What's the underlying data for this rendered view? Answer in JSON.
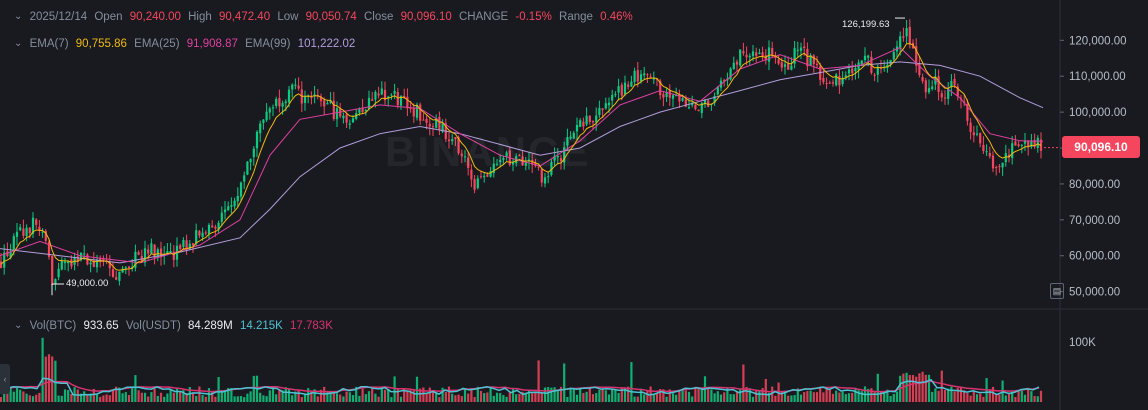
{
  "header": {
    "date": "2025/12/14",
    "open_label": "Open",
    "open": "90,240.00",
    "high_label": "High",
    "high": "90,472.40",
    "low_label": "Low",
    "low": "90,050.74",
    "close_label": "Close",
    "close": "90,096.10",
    "change_label": "CHANGE",
    "change": "-0.15%",
    "range_label": "Range",
    "range": "0.46%"
  },
  "ema": {
    "ema7_label": "EMA(7)",
    "ema7": "90,755.86",
    "ema25_label": "EMA(25)",
    "ema25": "91,908.87",
    "ema99_label": "EMA(99)",
    "ema99": "101,222.02"
  },
  "volume": {
    "label": "Vol(BTC)",
    "btc": "933.65",
    "usdt_label": "Vol(USDT)",
    "usdt": "84.289M",
    "ma1": "14.215K",
    "ma2": "17.783K"
  },
  "watermark": "BINANCE",
  "price_tag": "90,096.10",
  "annotations": {
    "high_marker": "126,199.63",
    "low_marker": "49,000.00"
  },
  "colors": {
    "up": "#0ecb81",
    "down": "#f6465d",
    "ema7": "#f0b90b",
    "ema25": "#e040a0",
    "ema99": "#b39ddb",
    "vol_ma1": "#4fc3d6",
    "vol_ma2": "#d8336f"
  },
  "icons": {
    "collapse": "chevron-down-icon",
    "settings": "chart-settings-icon",
    "scroll": "chevron-left-icon"
  },
  "chart_data": {
    "type": "candlestick",
    "y_ticks": [
      "120,000.00",
      "110,000.00",
      "100,000.00",
      "90,000.00",
      "80,000.00",
      "70,000.00",
      "60,000.00",
      "50,000.00"
    ],
    "ylim": [
      46000,
      129000
    ],
    "volume_ticks": [
      "100K"
    ],
    "volume_ylim": [
      0,
      150000
    ],
    "price_path": [
      [
        0,
        58000
      ],
      [
        20,
        66000
      ],
      [
        35,
        69000
      ],
      [
        48,
        62000
      ],
      [
        52,
        52000
      ],
      [
        60,
        56000
      ],
      [
        80,
        60000
      ],
      [
        100,
        58000
      ],
      [
        120,
        54000
      ],
      [
        135,
        59000
      ],
      [
        150,
        62000
      ],
      [
        170,
        60000
      ],
      [
        190,
        64000
      ],
      [
        210,
        68000
      ],
      [
        230,
        72000
      ],
      [
        245,
        85000
      ],
      [
        255,
        92000
      ],
      [
        265,
        100000
      ],
      [
        280,
        104000
      ],
      [
        295,
        106000
      ],
      [
        310,
        102000
      ],
      [
        320,
        104000
      ],
      [
        335,
        100000
      ],
      [
        350,
        98000
      ],
      [
        365,
        102000
      ],
      [
        380,
        106000
      ],
      [
        395,
        104000
      ],
      [
        410,
        102000
      ],
      [
        425,
        98000
      ],
      [
        440,
        96000
      ],
      [
        455,
        92000
      ],
      [
        465,
        86000
      ],
      [
        475,
        80000
      ],
      [
        490,
        82000
      ],
      [
        505,
        88000
      ],
      [
        520,
        86000
      ],
      [
        535,
        84000
      ],
      [
        545,
        80000
      ],
      [
        555,
        86000
      ],
      [
        565,
        90000
      ],
      [
        575,
        96000
      ],
      [
        590,
        98000
      ],
      [
        605,
        102000
      ],
      [
        620,
        106000
      ],
      [
        635,
        110000
      ],
      [
        650,
        108000
      ],
      [
        665,
        106000
      ],
      [
        680,
        104000
      ],
      [
        695,
        100000
      ],
      [
        710,
        104000
      ],
      [
        725,
        108000
      ],
      [
        740,
        116000
      ],
      [
        755,
        118000
      ],
      [
        770,
        116000
      ],
      [
        785,
        112000
      ],
      [
        800,
        118000
      ],
      [
        815,
        112000
      ],
      [
        830,
        108000
      ],
      [
        845,
        110000
      ],
      [
        860,
        116000
      ],
      [
        875,
        112000
      ],
      [
        890,
        114000
      ],
      [
        905,
        124000
      ],
      [
        915,
        116000
      ],
      [
        925,
        106000
      ],
      [
        935,
        110000
      ],
      [
        945,
        104000
      ],
      [
        955,
        108000
      ],
      [
        965,
        100000
      ],
      [
        975,
        94000
      ],
      [
        985,
        90000
      ],
      [
        995,
        84000
      ],
      [
        1005,
        88000
      ],
      [
        1015,
        90000
      ],
      [
        1025,
        92000
      ],
      [
        1035,
        91000
      ],
      [
        1043,
        90096
      ]
    ],
    "ema99_path": [
      [
        0,
        62000
      ],
      [
        60,
        60000
      ],
      [
        120,
        58000
      ],
      [
        180,
        61000
      ],
      [
        240,
        65000
      ],
      [
        270,
        73000
      ],
      [
        300,
        82000
      ],
      [
        340,
        90000
      ],
      [
        380,
        94000
      ],
      [
        420,
        96000
      ],
      [
        460,
        94000
      ],
      [
        500,
        91000
      ],
      [
        540,
        88000
      ],
      [
        580,
        90000
      ],
      [
        620,
        96000
      ],
      [
        660,
        100000
      ],
      [
        700,
        103000
      ],
      [
        740,
        106000
      ],
      [
        780,
        109000
      ],
      [
        820,
        111000
      ],
      [
        860,
        113000
      ],
      [
        900,
        114000
      ],
      [
        940,
        113000
      ],
      [
        980,
        110000
      ],
      [
        1020,
        104000
      ],
      [
        1043,
        101222
      ]
    ],
    "ema25_path": [
      [
        0,
        60000
      ],
      [
        40,
        64000
      ],
      [
        80,
        60000
      ],
      [
        140,
        58000
      ],
      [
        200,
        63000
      ],
      [
        240,
        70000
      ],
      [
        270,
        88000
      ],
      [
        300,
        98000
      ],
      [
        340,
        100000
      ],
      [
        380,
        102000
      ],
      [
        420,
        101000
      ],
      [
        460,
        94000
      ],
      [
        500,
        88000
      ],
      [
        540,
        85000
      ],
      [
        580,
        92000
      ],
      [
        620,
        102000
      ],
      [
        660,
        106000
      ],
      [
        700,
        103000
      ],
      [
        740,
        112000
      ],
      [
        780,
        116000
      ],
      [
        820,
        112000
      ],
      [
        860,
        113000
      ],
      [
        900,
        118000
      ],
      [
        930,
        110000
      ],
      [
        960,
        104000
      ],
      [
        990,
        94000
      ],
      [
        1020,
        92000
      ],
      [
        1043,
        91909
      ]
    ],
    "high_marker": 126199.63,
    "low_marker": 49000
  }
}
